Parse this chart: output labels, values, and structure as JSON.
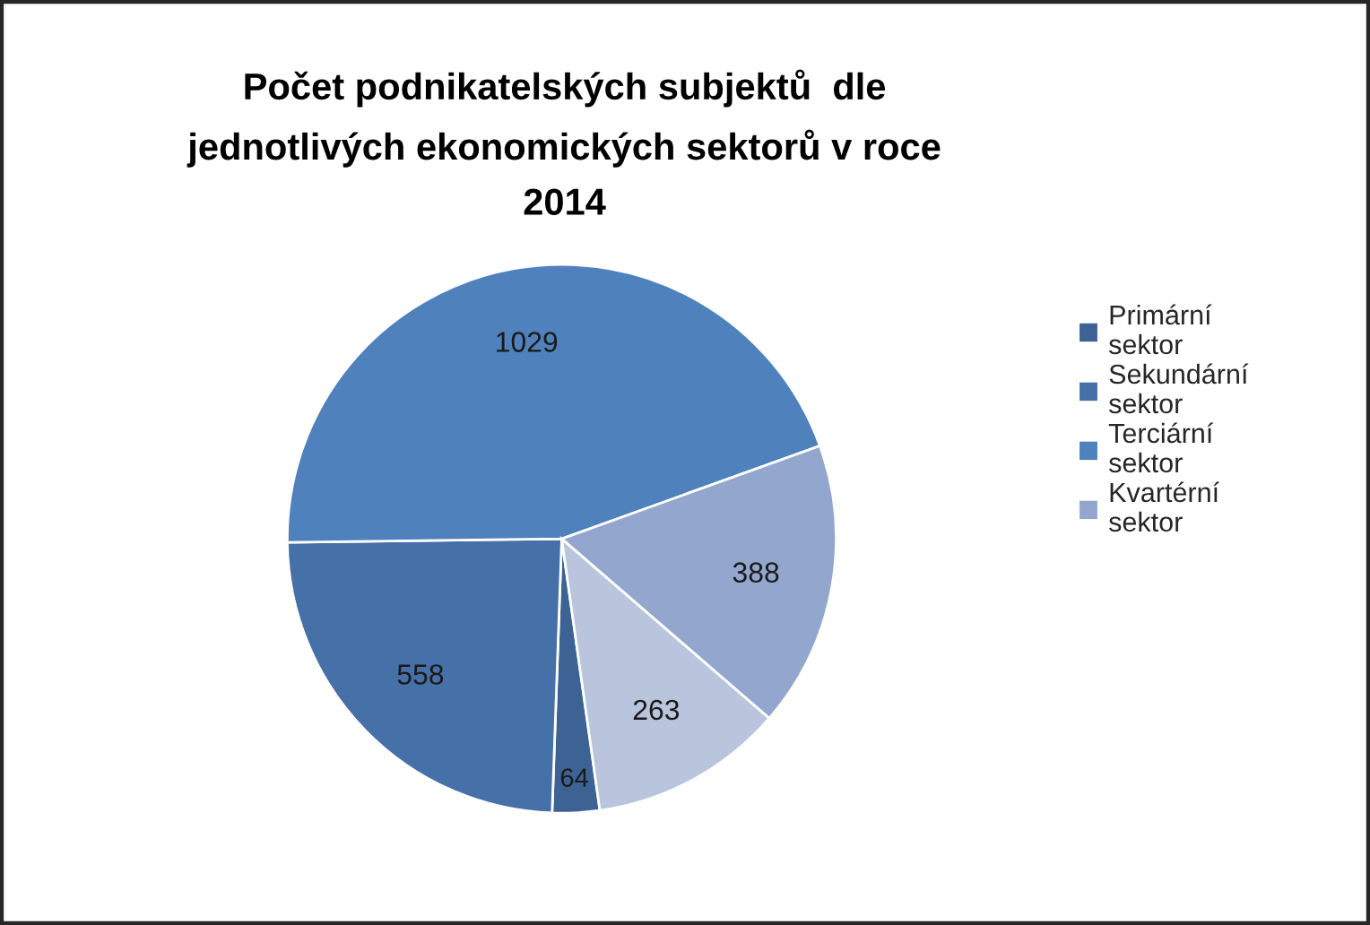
{
  "chart_data": {
    "type": "pie",
    "title": "Počet podnikatelských subjektů  dle\njednotlivých ekonomických sektorů v roce\n2014",
    "categories": [
      "Primární sektor",
      "Sekundární sektor",
      "Terciární sektor",
      "Kvartérní sektor",
      null
    ],
    "values": [
      64,
      558,
      1029,
      388,
      263
    ],
    "colors": [
      "#3d6394",
      "#4670a8",
      "#4f81bd",
      "#93a7ce",
      "#b9c5dd"
    ],
    "data_labels": true,
    "legend": "right"
  }
}
